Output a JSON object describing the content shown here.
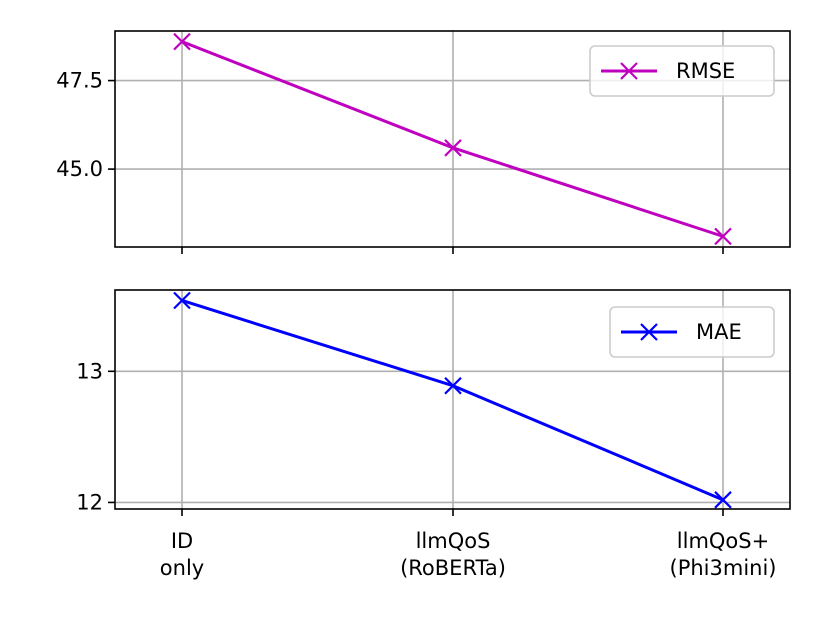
{
  "chart_data": [
    {
      "type": "line",
      "categories": [
        "ID\nonly",
        "llmQoS\n(RoBERTa)",
        "llmQoS+\n(Phi3mini)"
      ],
      "series": [
        {
          "name": "RMSE",
          "values": [
            48.6,
            45.6,
            43.1
          ],
          "color": "#bf00bf",
          "marker": "x"
        }
      ],
      "yticks": [
        45.0,
        47.5
      ],
      "ytick_labels": [
        "45.0",
        "47.5"
      ],
      "ylim": [
        42.8,
        48.9
      ],
      "grid": true,
      "legend": "top-right"
    },
    {
      "type": "line",
      "categories": [
        "ID\nonly",
        "llmQoS\n(RoBERTa)",
        "llmQoS+\n(Phi3mini)"
      ],
      "series": [
        {
          "name": "MAE",
          "values": [
            13.54,
            12.89,
            12.02
          ],
          "color": "#0000ff",
          "marker": "x"
        }
      ],
      "yticks": [
        12,
        13
      ],
      "ytick_labels": [
        "12",
        "13"
      ],
      "ylim": [
        11.95,
        13.62
      ],
      "grid": true,
      "legend": "top-right"
    }
  ]
}
